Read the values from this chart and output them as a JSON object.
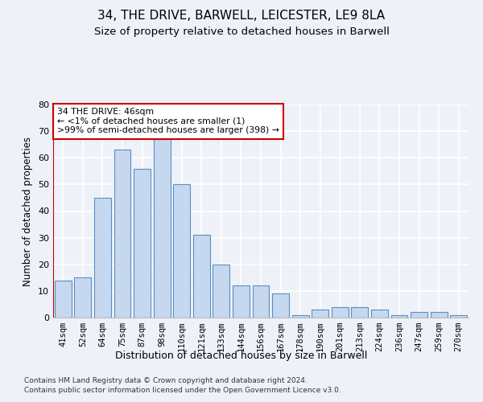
{
  "title1": "34, THE DRIVE, BARWELL, LEICESTER, LE9 8LA",
  "title2": "Size of property relative to detached houses in Barwell",
  "xlabel": "Distribution of detached houses by size in Barwell",
  "ylabel": "Number of detached properties",
  "categories": [
    "41sqm",
    "52sqm",
    "64sqm",
    "75sqm",
    "87sqm",
    "98sqm",
    "110sqm",
    "121sqm",
    "133sqm",
    "144sqm",
    "156sqm",
    "167sqm",
    "178sqm",
    "190sqm",
    "201sqm",
    "213sqm",
    "224sqm",
    "236sqm",
    "247sqm",
    "259sqm",
    "270sqm"
  ],
  "values": [
    14,
    15,
    45,
    63,
    56,
    67,
    50,
    31,
    20,
    12,
    12,
    9,
    1,
    3,
    4,
    4,
    3,
    1,
    2,
    2,
    1
  ],
  "bar_color": "#c5d8f0",
  "bar_edge_color": "#5a8fc3",
  "annotation_line1": "34 THE DRIVE: 46sqm",
  "annotation_line2": "← <1% of detached houses are smaller (1)",
  "annotation_line3": ">99% of semi-detached houses are larger (398) →",
  "annotation_box_color": "#ffffff",
  "annotation_box_edge": "#cc0000",
  "ylim": [
    0,
    80
  ],
  "yticks": [
    0,
    10,
    20,
    30,
    40,
    50,
    60,
    70,
    80
  ],
  "footer1": "Contains HM Land Registry data © Crown copyright and database right 2024.",
  "footer2": "Contains public sector information licensed under the Open Government Licence v3.0.",
  "bg_color": "#eef2f8",
  "grid_color": "#ffffff",
  "title1_fontsize": 11,
  "title2_fontsize": 9.5,
  "tick_fontsize": 7.5,
  "ylabel_fontsize": 8.5,
  "xlabel_fontsize": 9
}
